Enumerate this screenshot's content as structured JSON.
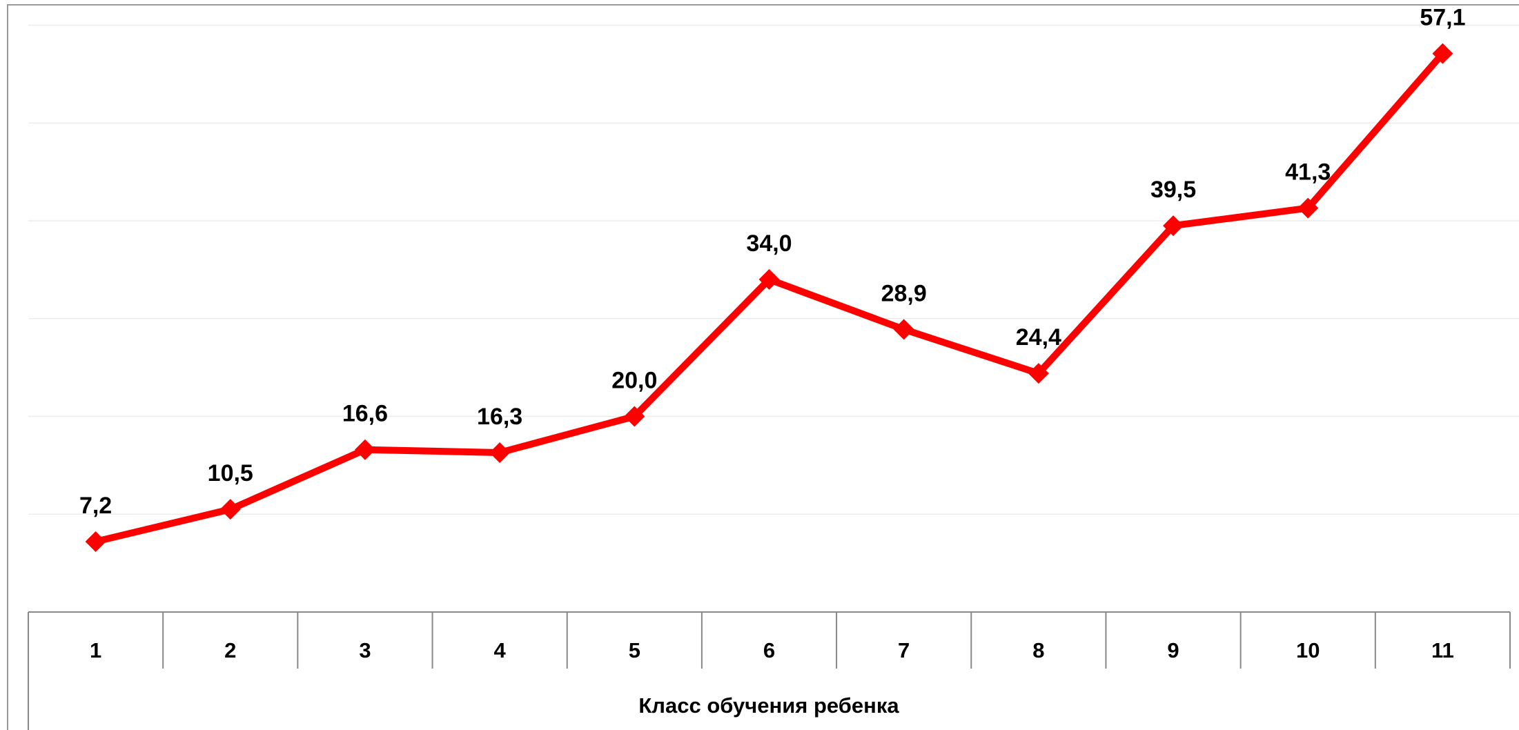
{
  "chart_data": {
    "type": "line",
    "x_label": "Класс обучения ребенка",
    "categories": [
      "1",
      "2",
      "3",
      "4",
      "5",
      "6",
      "7",
      "8",
      "9",
      "10",
      "11"
    ],
    "series": [
      {
        "name": null,
        "color": "#ff0000",
        "values": [
          7.2,
          10.5,
          16.6,
          16.3,
          20.0,
          34.0,
          28.9,
          24.4,
          39.5,
          41.3,
          57.1
        ],
        "value_labels": [
          "7,2",
          "10,5",
          "16,6",
          "16,3",
          "20,0",
          "34,0",
          "28,9",
          "24,4",
          "39,5",
          "41,3",
          "57,1"
        ]
      }
    ],
    "ylim": [
      0,
      60
    ],
    "yticks": [
      0,
      10,
      20,
      30,
      40,
      50,
      60
    ],
    "grid": true
  }
}
